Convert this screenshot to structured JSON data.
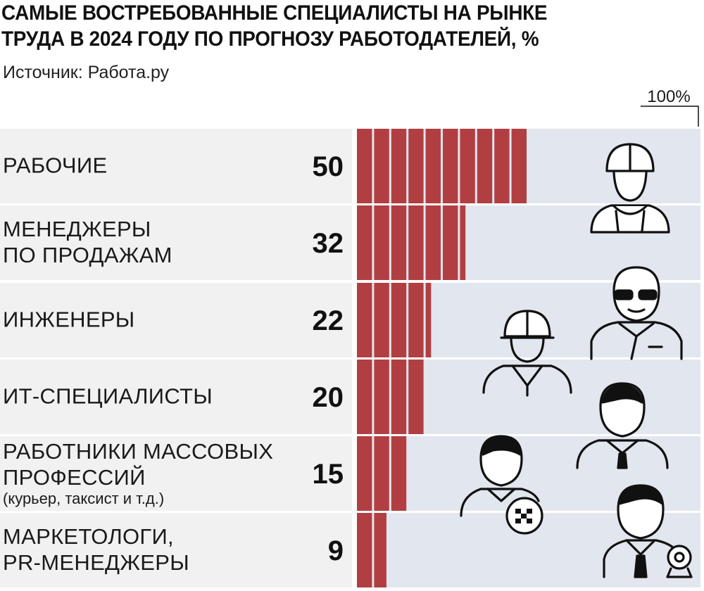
{
  "header": {
    "title_line1": "САМЫЕ ВОСТРЕБОВАННЫЕ СПЕЦИАЛИСТЫ НА РЫНКЕ",
    "title_line2": "ТРУДА В 2024 ГОДУ ПО ПРОГНОЗУ РАБОТОДАТЕЛЕЙ, %",
    "source": "Источник: Работа.ру"
  },
  "chart_data": {
    "type": "bar",
    "orientation": "horizontal",
    "title": "САМЫЕ ВОСТРЕБОВАННЫЕ СПЕЦИАЛИСТЫ НА РЫНКЕ ТРУДА В 2024 ГОДУ ПО ПРОГНОЗУ РАБОТОДАТЕЛЕЙ, %",
    "max_label": "100%",
    "xlim": [
      0,
      100
    ],
    "grid": false,
    "legend": "none",
    "categories": [
      {
        "lines": [
          "РАБОЧИЕ"
        ],
        "note": ""
      },
      {
        "lines": [
          "МЕНЕДЖЕРЫ",
          "ПО ПРОДАЖАМ"
        ],
        "note": ""
      },
      {
        "lines": [
          "ИНЖЕНЕРЫ"
        ],
        "note": ""
      },
      {
        "lines": [
          "ИТ-СПЕЦИАЛИСТЫ"
        ],
        "note": ""
      },
      {
        "lines": [
          "РАБОТНИКИ МАССОВЫХ",
          "ПРОФЕССИЙ"
        ],
        "note": "(курьер, таксист и т.д.)"
      },
      {
        "lines": [
          "МАРКЕТОЛОГИ,",
          "PR-МЕНЕДЖЕРЫ"
        ],
        "note": ""
      }
    ],
    "values": [
      50,
      32,
      22,
      20,
      15,
      9
    ],
    "segment_unit": 5
  },
  "colors": {
    "bar": "#b13f42",
    "track": "#e2e6ee",
    "row_bg": "#f1f1f1",
    "text": "#111111",
    "icon_stroke": "#111111"
  },
  "icons": [
    "hardhat-worker-icon",
    "sunglasses-man-icon",
    "engineer-helmet-icon",
    "businessman-icon",
    "taxi-driver-icon",
    "manager-webcam-icon"
  ]
}
